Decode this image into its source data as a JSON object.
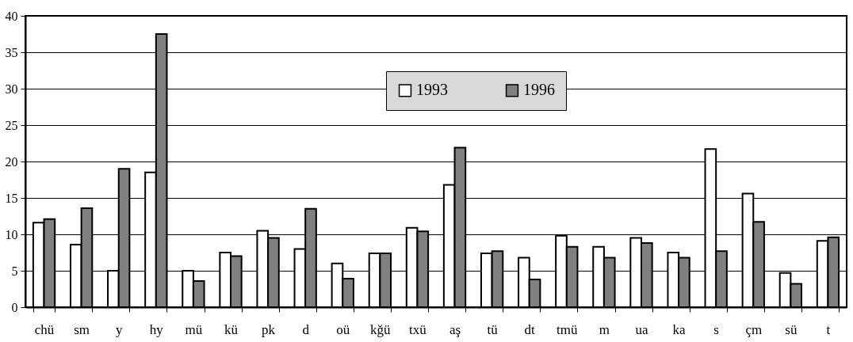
{
  "chart_data": {
    "type": "bar",
    "categories": [
      "chü",
      "sm",
      "y",
      "hy",
      "mü",
      "kü",
      "pk",
      "d",
      "oü",
      "kğü",
      "txü",
      "aş",
      "tü",
      "dt",
      "tmü",
      "m",
      "ua",
      "ka",
      "s",
      "çm",
      "sü",
      "t"
    ],
    "series": [
      {
        "name": "1993",
        "color": "#ffffff",
        "values": [
          11.6,
          8.6,
          5.0,
          18.5,
          5.0,
          7.5,
          10.5,
          8.0,
          6.0,
          7.4,
          10.9,
          16.8,
          7.4,
          6.8,
          9.8,
          8.3,
          9.5,
          7.5,
          21.7,
          15.6,
          4.7,
          9.1
        ]
      },
      {
        "name": "1996",
        "color": "#808080",
        "values": [
          12.1,
          13.6,
          19.0,
          37.5,
          3.6,
          7.0,
          9.5,
          13.5,
          3.9,
          7.4,
          10.4,
          21.9,
          7.7,
          3.8,
          8.3,
          6.8,
          8.8,
          6.8,
          7.7,
          11.7,
          3.2,
          9.6
        ]
      }
    ],
    "ylim": [
      0,
      40
    ],
    "yticks": [
      0,
      5,
      10,
      15,
      20,
      25,
      30,
      35,
      40
    ],
    "grid": "y",
    "legend": "top"
  }
}
